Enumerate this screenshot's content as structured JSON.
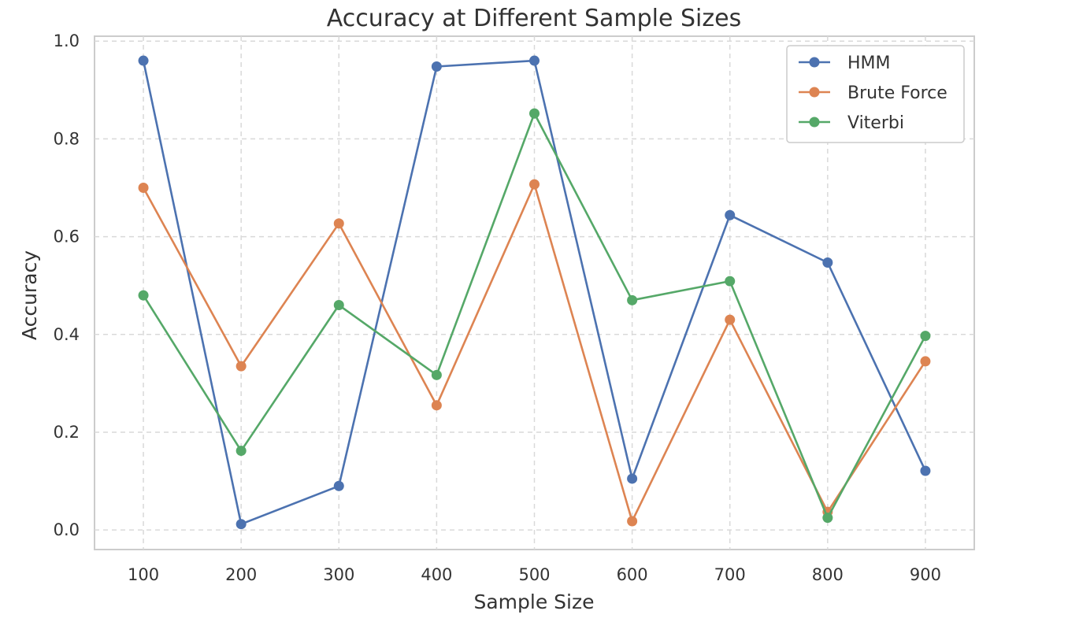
{
  "chart_data": {
    "type": "line",
    "title": "Accuracy at Different Sample Sizes",
    "xlabel": "Sample Size",
    "ylabel": "Accuracy",
    "x": [
      100,
      200,
      300,
      400,
      500,
      600,
      700,
      800,
      900
    ],
    "x_ticks": [
      "100",
      "200",
      "300",
      "400",
      "500",
      "600",
      "700",
      "800",
      "900"
    ],
    "y_ticks": [
      "0.0",
      "0.2",
      "0.4",
      "0.6",
      "0.8",
      "1.0"
    ],
    "xlim": [
      50,
      950
    ],
    "ylim": [
      -0.04,
      1.01
    ],
    "grid": true,
    "legend_position": "top-right",
    "series": [
      {
        "name": "HMM",
        "color": "#4c72b0",
        "marker": "circle",
        "values": [
          0.96,
          0.012,
          0.09,
          0.948,
          0.96,
          0.105,
          0.644,
          0.547,
          0.121
        ]
      },
      {
        "name": "Brute Force",
        "color": "#dd8452",
        "marker": "circle",
        "values": [
          0.7,
          0.335,
          0.627,
          0.255,
          0.707,
          0.018,
          0.43,
          0.037,
          0.345
        ]
      },
      {
        "name": "Viterbi",
        "color": "#55a868",
        "marker": "circle",
        "values": [
          0.48,
          0.162,
          0.46,
          0.317,
          0.852,
          0.47,
          0.509,
          0.025,
          0.397
        ]
      }
    ]
  }
}
